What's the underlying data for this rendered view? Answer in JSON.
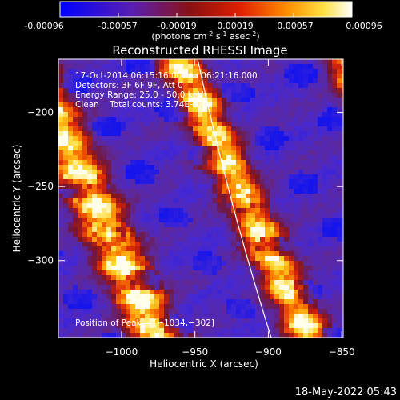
{
  "colorbar": {
    "ticks": [
      "-0.00096",
      "-0.00057",
      "-0.00019",
      "0.00019",
      "0.00057",
      "0.00096"
    ],
    "unit_main": "(photons cm",
    "unit_sup1": "-2",
    "unit_mid": " s",
    "unit_sup2": "-1",
    "unit_end": " asec",
    "unit_sup3": "-2",
    "unit_close": ")"
  },
  "chart_data": {
    "type": "heatmap",
    "title": "Reconstructed RHESSI Image",
    "xlabel": "Heliocentric X (arcsec)",
    "ylabel": "Heliocentric Y (arcsec)",
    "xlim": [
      -1043,
      -849
    ],
    "ylim": [
      -352,
      -164
    ],
    "x_ticks": [
      -1000,
      -950,
      -900,
      -850
    ],
    "x_tick_labels": [
      "−1000",
      "−950",
      "−900",
      "−850"
    ],
    "y_ticks": [
      -200,
      -250,
      -300
    ],
    "y_tick_labels": [
      "−200",
      "−250",
      "−300"
    ],
    "value_range": [
      -0.00096,
      0.00096
    ],
    "colormap": "RHESSI: blue → purple → red → orange → yellow → white",
    "peak": [
      -1034,
      -302
    ],
    "limb_line": "white solar limb curve",
    "annotations": [
      "17-Oct-2014 06:15:16.000 to 06:21:16.000",
      "Detectors: 3F 6F 9F, Att 0",
      "Energy Range: 25.0 - 50.0 keV",
      "Clean    Total counts: 3.74E+03"
    ],
    "peak_label": "Position of Peak = [−1034,−302]"
  },
  "footer": {
    "timestamp": "18-May-2022 05:43"
  }
}
